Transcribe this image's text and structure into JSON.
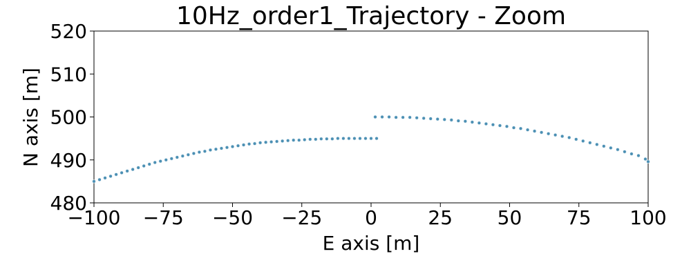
{
  "chart_data": {
    "type": "scatter",
    "title": "10Hz_order1_Trajectory - Zoom",
    "xlabel": "E axis [m]",
    "ylabel": "N axis [m]",
    "xlim": [
      -100,
      100
    ],
    "ylim": [
      480,
      520
    ],
    "xticks": [
      -100,
      -75,
      -50,
      -25,
      0,
      25,
      50,
      75,
      100
    ],
    "xtick_labels": [
      "−100",
      "−75",
      "−50",
      "−25",
      "0",
      "25",
      "50",
      "75",
      "100"
    ],
    "yticks": [
      480,
      490,
      500,
      510,
      520
    ],
    "ytick_labels": [
      "480",
      "490",
      "500",
      "510",
      "520"
    ],
    "grid": false,
    "point_color": "#4b8fb3",
    "series": [
      {
        "segment": "left",
        "x": [
          -100,
          -98,
          -96,
          -94,
          -92,
          -90,
          -88,
          -86,
          -84,
          -82,
          -80,
          -78,
          -76,
          -74,
          -72,
          -70,
          -68,
          -66,
          -64,
          -62,
          -60,
          -58,
          -56,
          -54,
          -52,
          -50,
          -48,
          -46,
          -44,
          -42,
          -40,
          -38,
          -36,
          -34,
          -32,
          -30,
          -28,
          -26,
          -24,
          -22,
          -20,
          -18,
          -16,
          -14,
          -12,
          -10,
          -8,
          -6,
          -4,
          -2,
          0,
          2
        ],
        "y": [
          485.0,
          485.4,
          485.8,
          486.2,
          486.6,
          487.0,
          487.4,
          487.8,
          488.2,
          488.6,
          489.0,
          489.4,
          489.7,
          490.0,
          490.3,
          490.6,
          490.9,
          491.2,
          491.5,
          491.8,
          492.0,
          492.3,
          492.5,
          492.7,
          492.9,
          493.1,
          493.3,
          493.5,
          493.7,
          493.8,
          494.0,
          494.1,
          494.2,
          494.3,
          494.4,
          494.5,
          494.6,
          494.6,
          494.7,
          494.8,
          494.8,
          494.9,
          494.9,
          494.9,
          495.0,
          495.0,
          495.0,
          495.0,
          495.0,
          495.0,
          495.0,
          495.0
        ]
      },
      {
        "segment": "right",
        "x": [
          1.5,
          4,
          6.5,
          9,
          11.5,
          14,
          16.5,
          19,
          21.5,
          24,
          26.5,
          29,
          31.5,
          34,
          36.5,
          39,
          41.5,
          44,
          46.5,
          49,
          51.5,
          54,
          56.5,
          59,
          61.5,
          64,
          66.5,
          69,
          71.5,
          74,
          76.5,
          79,
          81.5,
          84,
          86.5,
          89,
          91.5,
          94,
          96.5,
          99,
          100
        ],
        "y": [
          500.0,
          500.0,
          500.0,
          499.9,
          499.9,
          499.9,
          499.8,
          499.7,
          499.6,
          499.5,
          499.4,
          499.3,
          499.1,
          499.0,
          498.8,
          498.6,
          498.4,
          498.2,
          498.0,
          497.8,
          497.5,
          497.3,
          497.0,
          496.7,
          496.4,
          496.1,
          495.8,
          495.5,
          495.2,
          494.8,
          494.4,
          494.0,
          493.6,
          493.2,
          492.8,
          492.4,
          491.9,
          491.4,
          491.0,
          490.2,
          489.6
        ]
      }
    ]
  }
}
